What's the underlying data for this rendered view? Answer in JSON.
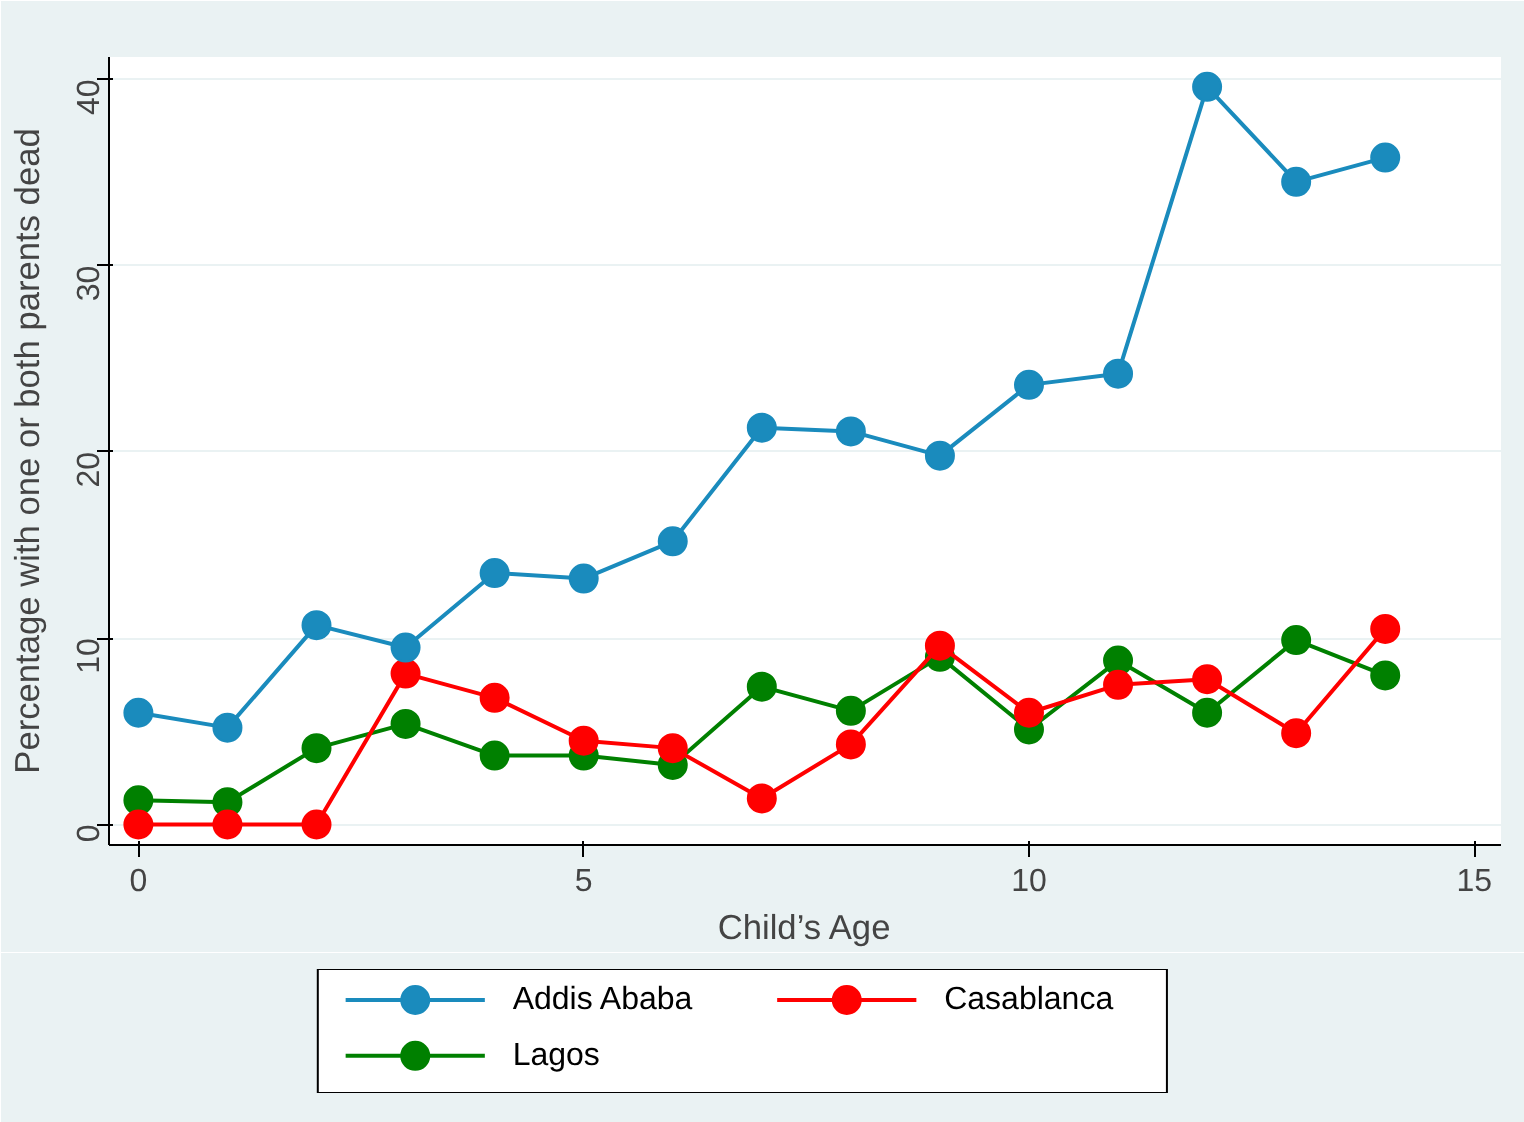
{
  "chart_data": {
    "type": "line",
    "xlabel": "Child’s Age",
    "ylabel": "Percentage with one or both parents dead",
    "x": [
      0,
      1,
      2,
      3,
      4,
      5,
      6,
      7,
      8,
      9,
      10,
      11,
      12,
      13,
      14
    ],
    "series": [
      {
        "name": "Addis Ababa",
        "color": "#1a8bbd",
        "values": [
          6.0,
          5.2,
          10.7,
          9.5,
          13.5,
          13.2,
          15.2,
          21.3,
          21.1,
          19.8,
          23.6,
          24.2,
          39.6,
          34.5,
          35.8
        ]
      },
      {
        "name": "Casablanca",
        "color": "#ff0000",
        "values": [
          0,
          0,
          0,
          8.1,
          6.8,
          4.5,
          4.1,
          1.4,
          4.3,
          9.6,
          6.0,
          7.5,
          7.8,
          4.9,
          10.5
        ]
      },
      {
        "name": "Lagos",
        "color": "#008000",
        "values": [
          1.3,
          1.2,
          4.1,
          5.4,
          3.7,
          3.7,
          3.2,
          7.4,
          6.1,
          9.0,
          5.1,
          8.8,
          6.0,
          9.9,
          8.0
        ]
      }
    ],
    "xlim": [
      -0.33,
      15.3
    ],
    "ylim": [
      -1.1,
      41.2
    ],
    "xticks": [
      0,
      5,
      10,
      15
    ],
    "yticks": [
      0,
      10,
      20,
      30,
      40
    ],
    "grid": "y",
    "legend": "bottom",
    "marker": "circle",
    "line_style": "solid"
  }
}
